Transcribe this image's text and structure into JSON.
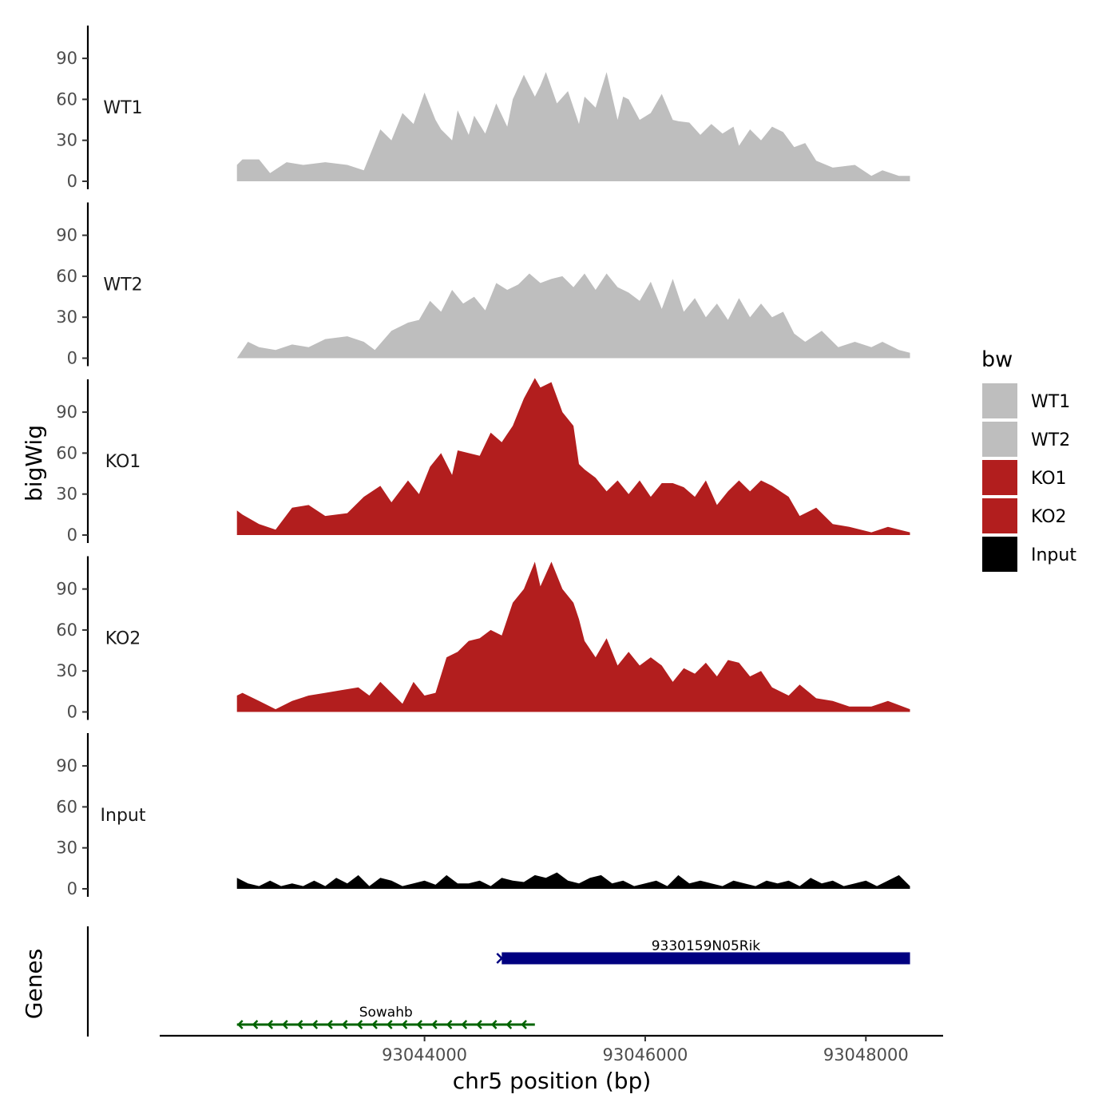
{
  "chart_data": {
    "type": "area",
    "xlabel": "chr5 position (bp)",
    "ylabel": "bigWig",
    "genes_label": "Genes",
    "xlim": [
      93041600,
      93048700
    ],
    "ylim": [
      0,
      115
    ],
    "x_ticks": [
      93044000,
      93046000,
      93048000
    ],
    "x_tick_labels": [
      "93044000",
      "93046000",
      "93048000"
    ],
    "y_ticks": [
      0,
      30,
      60,
      90
    ],
    "y_tick_labels": [
      "0",
      "30",
      "60",
      "90"
    ],
    "legend": {
      "title": "bw",
      "position": "right",
      "entries": [
        {
          "label": "WT1",
          "color": "#bebebe"
        },
        {
          "label": "WT2",
          "color": "#bebebe"
        },
        {
          "label": "KO1",
          "color": "#b21e1e"
        },
        {
          "label": "KO2",
          "color": "#b21e1e"
        },
        {
          "label": "Input",
          "color": "#000000"
        }
      ]
    },
    "series": [
      {
        "name": "WT1",
        "color": "#bebebe",
        "x": [
          93042300,
          93042350,
          93042500,
          93042600,
          93042750,
          93042900,
          93043100,
          93043300,
          93043450,
          93043600,
          93043700,
          93043800,
          93043900,
          93044000,
          93044100,
          93044150,
          93044250,
          93044300,
          93044400,
          93044450,
          93044550,
          93044650,
          93044750,
          93044800,
          93044900,
          93045000,
          93045050,
          93045100,
          93045200,
          93045300,
          93045400,
          93045450,
          93045550,
          93045650,
          93045750,
          93045800,
          93045850,
          93045950,
          93046050,
          93046150,
          93046250,
          93046300,
          93046400,
          93046500,
          93046600,
          93046700,
          93046800,
          93046850,
          93046950,
          93047050,
          93047150,
          93047250,
          93047350,
          93047450,
          93047550,
          93047700,
          93047900,
          93048050,
          93048150,
          93048300,
          93048400
        ],
        "values": [
          12,
          16,
          16,
          6,
          14,
          12,
          14,
          12,
          8,
          38,
          30,
          50,
          42,
          65,
          45,
          38,
          30,
          52,
          34,
          48,
          35,
          57,
          40,
          60,
          78,
          62,
          70,
          80,
          57,
          66,
          42,
          62,
          54,
          80,
          45,
          62,
          60,
          45,
          50,
          64,
          45,
          44,
          43,
          34,
          42,
          35,
          40,
          26,
          38,
          30,
          40,
          36,
          25,
          28,
          15,
          10,
          12,
          4,
          8,
          4,
          4
        ]
      },
      {
        "name": "WT2",
        "color": "#bebebe",
        "x": [
          93042300,
          93042400,
          93042500,
          93042650,
          93042800,
          93042950,
          93043100,
          93043300,
          93043450,
          93043550,
          93043700,
          93043850,
          93043950,
          93044050,
          93044150,
          93044250,
          93044350,
          93044450,
          93044550,
          93044650,
          93044750,
          93044850,
          93044950,
          93045050,
          93045150,
          93045250,
          93045350,
          93045450,
          93045550,
          93045650,
          93045750,
          93045850,
          93045950,
          93046050,
          93046150,
          93046250,
          93046350,
          93046450,
          93046550,
          93046650,
          93046750,
          93046850,
          93046950,
          93047050,
          93047150,
          93047250,
          93047350,
          93047450,
          93047600,
          93047750,
          93047900,
          93048050,
          93048150,
          93048300,
          93048400
        ],
        "values": [
          0,
          12,
          8,
          6,
          10,
          8,
          14,
          16,
          12,
          6,
          20,
          26,
          28,
          42,
          34,
          50,
          40,
          45,
          35,
          55,
          50,
          54,
          62,
          55,
          58,
          60,
          52,
          62,
          50,
          62,
          52,
          48,
          42,
          56,
          36,
          58,
          34,
          44,
          30,
          40,
          28,
          44,
          30,
          40,
          30,
          34,
          18,
          12,
          20,
          8,
          12,
          8,
          12,
          6,
          4
        ]
      },
      {
        "name": "KO1",
        "color": "#b21e1e",
        "x": [
          93042300,
          93042350,
          93042500,
          93042650,
          93042800,
          93042950,
          93043100,
          93043300,
          93043450,
          93043600,
          93043700,
          93043850,
          93043950,
          93044050,
          93044150,
          93044250,
          93044300,
          93044400,
          93044500,
          93044600,
          93044700,
          93044800,
          93044900,
          93045000,
          93045050,
          93045150,
          93045250,
          93045350,
          93045400,
          93045450,
          93045550,
          93045650,
          93045750,
          93045850,
          93045950,
          93046050,
          93046150,
          93046250,
          93046350,
          93046450,
          93046550,
          93046650,
          93046750,
          93046850,
          93046950,
          93047050,
          93047150,
          93047300,
          93047400,
          93047550,
          93047700,
          93047850,
          93048050,
          93048200,
          93048400
        ],
        "values": [
          18,
          15,
          8,
          4,
          20,
          22,
          14,
          16,
          28,
          36,
          24,
          40,
          30,
          50,
          60,
          44,
          62,
          60,
          58,
          75,
          68,
          80,
          100,
          115,
          108,
          112,
          90,
          80,
          52,
          48,
          42,
          32,
          40,
          30,
          40,
          28,
          38,
          38,
          35,
          28,
          40,
          22,
          32,
          40,
          32,
          40,
          36,
          28,
          14,
          20,
          8,
          6,
          2,
          6,
          2
        ]
      },
      {
        "name": "KO2",
        "color": "#b21e1e",
        "x": [
          93042300,
          93042350,
          93042500,
          93042650,
          93042800,
          93042950,
          93043100,
          93043250,
          93043400,
          93043500,
          93043600,
          93043700,
          93043800,
          93043900,
          93044000,
          93044100,
          93044200,
          93044300,
          93044400,
          93044500,
          93044600,
          93044700,
          93044800,
          93044900,
          93045000,
          93045050,
          93045150,
          93045250,
          93045350,
          93045400,
          93045450,
          93045550,
          93045650,
          93045750,
          93045850,
          93045950,
          93046050,
          93046150,
          93046250,
          93046350,
          93046450,
          93046550,
          93046650,
          93046750,
          93046850,
          93046950,
          93047050,
          93047150,
          93047300,
          93047400,
          93047550,
          93047700,
          93047850,
          93048050,
          93048200,
          93048400
        ],
        "values": [
          12,
          14,
          8,
          2,
          8,
          12,
          14,
          16,
          18,
          12,
          22,
          14,
          6,
          22,
          12,
          14,
          40,
          44,
          52,
          54,
          60,
          56,
          80,
          90,
          110,
          92,
          110,
          90,
          80,
          68,
          52,
          40,
          54,
          34,
          44,
          34,
          40,
          34,
          22,
          32,
          28,
          36,
          26,
          38,
          36,
          26,
          30,
          18,
          12,
          20,
          10,
          8,
          4,
          4,
          8,
          2
        ]
      },
      {
        "name": "Input",
        "color": "#000000",
        "x": [
          93042300,
          93042400,
          93042500,
          93042600,
          93042700,
          93042800,
          93042900,
          93043000,
          93043100,
          93043200,
          93043300,
          93043400,
          93043500,
          93043600,
          93043700,
          93043800,
          93043900,
          93044000,
          93044100,
          93044200,
          93044300,
          93044400,
          93044500,
          93044600,
          93044700,
          93044800,
          93044900,
          93045000,
          93045100,
          93045200,
          93045300,
          93045400,
          93045500,
          93045600,
          93045700,
          93045800,
          93045900,
          93046000,
          93046100,
          93046200,
          93046300,
          93046400,
          93046500,
          93046600,
          93046700,
          93046800,
          93046900,
          93047000,
          93047100,
          93047200,
          93047300,
          93047400,
          93047500,
          93047600,
          93047700,
          93047800,
          93047900,
          93048000,
          93048100,
          93048200,
          93048300,
          93048400
        ],
        "values": [
          8,
          4,
          2,
          6,
          2,
          4,
          2,
          6,
          2,
          8,
          4,
          10,
          2,
          8,
          6,
          2,
          4,
          6,
          3,
          10,
          4,
          4,
          6,
          2,
          8,
          6,
          5,
          10,
          8,
          12,
          6,
          4,
          8,
          10,
          4,
          6,
          2,
          4,
          6,
          2,
          10,
          4,
          6,
          4,
          2,
          6,
          4,
          2,
          6,
          4,
          6,
          2,
          8,
          4,
          6,
          2,
          4,
          6,
          2,
          6,
          10,
          2
        ]
      }
    ],
    "genes": [
      {
        "name": "9330159N05Rik",
        "start": 93044700,
        "end": 93048400,
        "strand": "+",
        "color": "#000080"
      },
      {
        "name": "Sowahb",
        "start": 93042300,
        "end": 93045000,
        "strand": "-",
        "color": "#006400"
      }
    ]
  }
}
